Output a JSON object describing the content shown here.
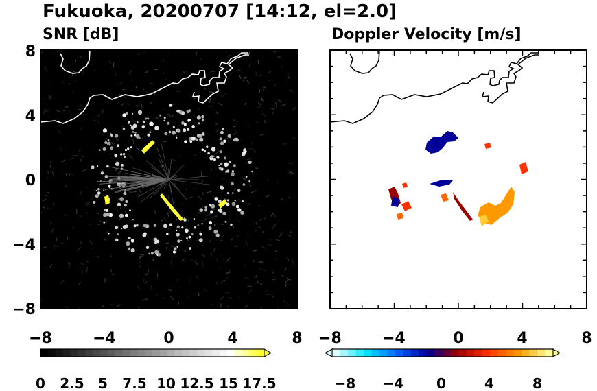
{
  "chart_data": [
    {
      "type": "heatmap",
      "title": "Fukuoka, 20200707 [14:12, el=2.0]",
      "subtitle": "SNR [dB]",
      "xlim": [
        -8,
        8
      ],
      "ylim": [
        -8,
        8
      ],
      "x_ticks": [
        "−8",
        "−4",
        "0",
        "4",
        "8"
      ],
      "y_ticks": [
        "8",
        "4",
        "0",
        "−4",
        "−8"
      ],
      "colorbar": {
        "range": [
          0,
          18.5
        ],
        "extend": "max",
        "tick_labels": [
          "0",
          "2.5",
          "5",
          "7.5",
          "10",
          "12.5",
          "15",
          "17.5"
        ],
        "colors": [
          "#000000",
          "#2a2a2a",
          "#555555",
          "#808080",
          "#aaaaaa",
          "#d5d5d5",
          "#ffffff",
          "#ffff33"
        ]
      },
      "echo_ring": {
        "center": [
          0,
          0
        ],
        "radius_km": [
          3.2,
          5.0
        ],
        "max_snr_db": 18.5
      },
      "background": "#000000"
    },
    {
      "type": "heatmap",
      "subtitle": "Doppler Velocity [m/s]",
      "xlim": [
        -8,
        8
      ],
      "ylim": [
        -8,
        8
      ],
      "x_ticks": [
        "−8",
        "−4",
        "0",
        "4",
        "8"
      ],
      "colorbar": {
        "range": [
          -10,
          10
        ],
        "extend": "both",
        "tick_labels": [
          "−8",
          "−4",
          "0",
          "4",
          "8"
        ],
        "colors": [
          "#e0ffff",
          "#00e5ff",
          "#0066ff",
          "#000099",
          "#990000",
          "#ff3300",
          "#ff9900",
          "#ffff99"
        ]
      },
      "echo_regions": [
        {
          "center": [
            -1.0,
            2.5
          ],
          "velocity_ms": -6
        },
        {
          "center": [
            -0.6,
            0.2
          ],
          "velocity_ms": -5
        },
        {
          "center": [
            3.8,
            -2.2
          ],
          "velocity_ms": 7
        },
        {
          "center": [
            -3.5,
            -1.5
          ],
          "velocity_ms": 3
        },
        {
          "center": [
            1.5,
            -1.8
          ],
          "velocity_ms": 1
        },
        {
          "center": [
            4.7,
            0.7
          ],
          "velocity_ms": 2
        }
      ]
    }
  ]
}
